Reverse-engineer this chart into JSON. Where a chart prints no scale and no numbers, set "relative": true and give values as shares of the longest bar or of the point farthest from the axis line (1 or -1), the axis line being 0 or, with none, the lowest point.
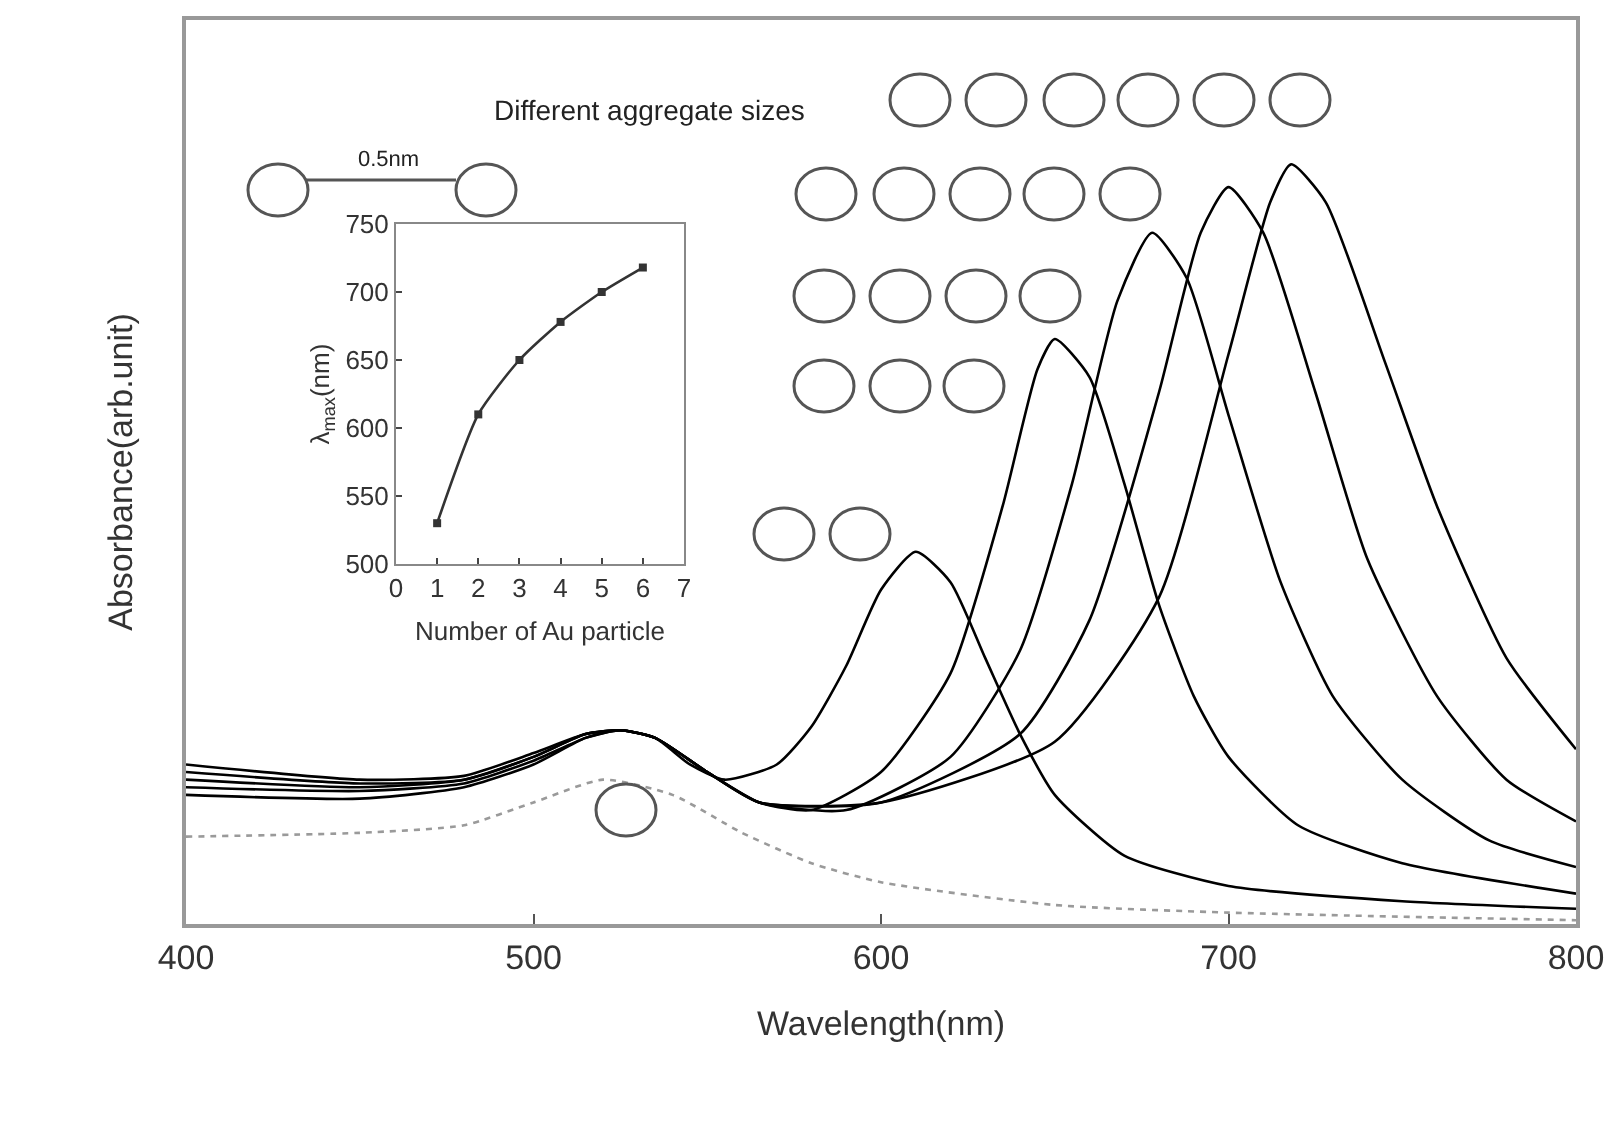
{
  "chart_data": [
    {
      "type": "line",
      "relative": true,
      "xlabel": "Wavelength(nm)",
      "ylabel": "Absorbance(arb.unit)",
      "xlim": [
        400,
        800
      ],
      "xticks": [
        400,
        500,
        600,
        700,
        800
      ],
      "grid": false,
      "marker": "none",
      "annotations": [
        "Different aggregate sizes",
        "0.5nm"
      ],
      "series": [
        {
          "color": "#9a9a9a",
          "line_style": "dotted",
          "x": [
            400,
            450,
            480,
            500,
            520,
            540,
            560,
            580,
            600,
            650,
            700,
            800
          ],
          "values": [
            0.115,
            0.12,
            0.13,
            0.16,
            0.19,
            0.17,
            0.12,
            0.08,
            0.055,
            0.025,
            0.015,
            0.005
          ]
        },
        {
          "color": "#000000",
          "line_style": "solid",
          "x": [
            400,
            450,
            480,
            500,
            515,
            525,
            535,
            545,
            555,
            570,
            580,
            590,
            600,
            610,
            620,
            630,
            640,
            650,
            670,
            700,
            750,
            800
          ],
          "values": [
            0.19,
            0.18,
            0.19,
            0.22,
            0.25,
            0.255,
            0.245,
            0.21,
            0.19,
            0.21,
            0.26,
            0.34,
            0.44,
            0.49,
            0.45,
            0.35,
            0.25,
            0.17,
            0.09,
            0.05,
            0.03,
            0.02
          ]
        },
        {
          "color": "#000000",
          "line_style": "solid",
          "x": [
            400,
            450,
            480,
            500,
            515,
            525,
            535,
            550,
            565,
            580,
            600,
            620,
            635,
            645,
            650,
            660,
            670,
            680,
            690,
            700,
            720,
            750,
            800
          ],
          "values": [
            0.18,
            0.175,
            0.185,
            0.215,
            0.245,
            0.255,
            0.245,
            0.2,
            0.16,
            0.15,
            0.2,
            0.33,
            0.55,
            0.73,
            0.77,
            0.72,
            0.58,
            0.42,
            0.3,
            0.22,
            0.13,
            0.08,
            0.04
          ]
        },
        {
          "color": "#000000",
          "line_style": "solid",
          "x": [
            400,
            450,
            480,
            500,
            515,
            525,
            535,
            550,
            565,
            590,
            620,
            640,
            655,
            668,
            678,
            688,
            700,
            715,
            730,
            750,
            775,
            800
          ],
          "values": [
            0.2,
            0.185,
            0.19,
            0.22,
            0.25,
            0.255,
            0.245,
            0.2,
            0.16,
            0.15,
            0.22,
            0.36,
            0.58,
            0.82,
            0.91,
            0.85,
            0.67,
            0.45,
            0.3,
            0.19,
            0.11,
            0.075
          ]
        },
        {
          "color": "#000000",
          "line_style": "solid",
          "x": [
            400,
            450,
            480,
            500,
            515,
            525,
            535,
            550,
            565,
            600,
            640,
            660,
            680,
            692,
            700,
            710,
            725,
            740,
            760,
            780,
            800
          ],
          "values": [
            0.17,
            0.165,
            0.18,
            0.21,
            0.245,
            0.255,
            0.245,
            0.2,
            0.16,
            0.16,
            0.25,
            0.4,
            0.7,
            0.91,
            0.97,
            0.91,
            0.7,
            0.48,
            0.3,
            0.19,
            0.135
          ]
        },
        {
          "color": "#000000",
          "line_style": "solid",
          "x": [
            400,
            450,
            480,
            500,
            515,
            525,
            535,
            550,
            565,
            600,
            650,
            680,
            700,
            712,
            718,
            728,
            745,
            760,
            780,
            800
          ],
          "values": [
            0.21,
            0.19,
            0.195,
            0.225,
            0.25,
            0.255,
            0.245,
            0.2,
            0.16,
            0.16,
            0.24,
            0.43,
            0.75,
            0.95,
            1.0,
            0.95,
            0.74,
            0.55,
            0.35,
            0.23
          ]
        }
      ]
    },
    {
      "type": "line",
      "xlabel": "Number of Au particle",
      "ylabel": "λ$_{max}$(nm)",
      "xlim": [
        0,
        7
      ],
      "ylim": [
        500,
        750
      ],
      "xticks": [
        0,
        1,
        2,
        3,
        4,
        5,
        6,
        7
      ],
      "yticks": [
        500,
        550,
        600,
        650,
        700,
        750
      ],
      "grid": false,
      "marker": "square",
      "series": [
        {
          "color": "#333333",
          "line_style": "solid",
          "x": [
            1,
            2,
            3,
            4,
            5,
            6
          ],
          "values": [
            530,
            610,
            650,
            678,
            700,
            718
          ]
        }
      ]
    }
  ]
}
